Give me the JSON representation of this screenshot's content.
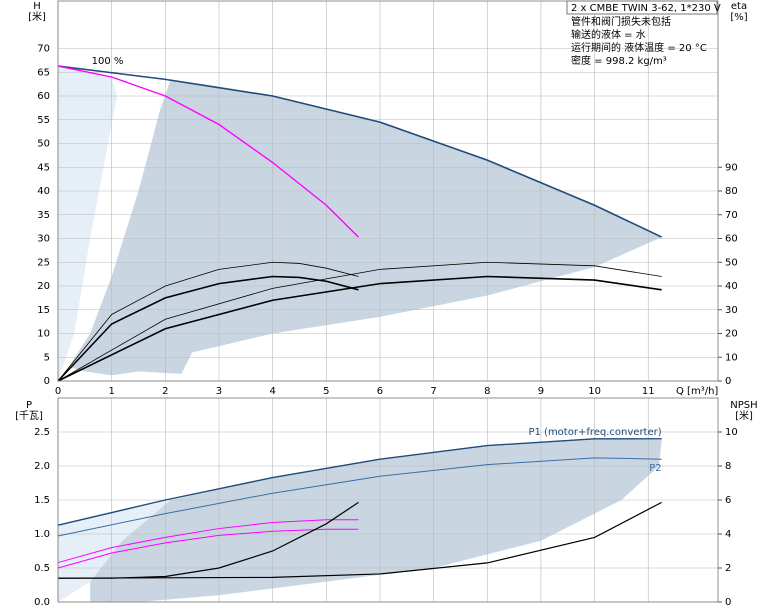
{
  "chart_data": [
    {
      "type": "line",
      "ylabel": "H",
      "yunit": "[米]",
      "y2label": "eta",
      "y2unit": "[%]",
      "xlabel": "Q [m³/h]",
      "notes": [
        "管件和阀门损失未包括",
        "输送的液体 = 水",
        "运行期间的 液体温度 = 20 °C",
        "密度 = 998.2 kg/m³"
      ],
      "product": "2 x CMBE TWIN 3-62, 1*230 V",
      "xlim": [
        0,
        12.3
      ],
      "xticks": [
        0,
        1,
        2,
        3,
        4,
        5,
        6,
        7,
        8,
        9,
        10,
        11
      ],
      "ylim": [
        0,
        80
      ],
      "yticks": [
        0,
        5,
        10,
        15,
        20,
        25,
        30,
        35,
        40,
        45,
        50,
        55,
        60,
        65,
        70
      ],
      "y2lim": [
        0,
        160
      ],
      "y2ticks": [
        0,
        10,
        20,
        30,
        40,
        50,
        60,
        70,
        80,
        90
      ],
      "grid": true,
      "areas": [
        {
          "color": "#e6eef7",
          "x": [
            0,
            1,
            1.1,
            0.6,
            0.3,
            0
          ],
          "values": [
            66.3,
            64,
            60,
            30,
            10,
            0
          ]
        },
        {
          "color": "#c9d6e2",
          "x": [
            2.1,
            3,
            4,
            6,
            8,
            10,
            11.25,
            10,
            8,
            6,
            4,
            2.5,
            2.3,
            1.5,
            1,
            0.5,
            0.2,
            0.6,
            1,
            1.5,
            1.9
          ],
          "values": [
            63.5,
            62,
            60,
            54.5,
            46.5,
            37,
            30.3,
            24,
            18,
            13.5,
            10,
            6,
            1.5,
            2,
            1.2,
            2,
            3,
            10,
            22,
            40,
            57
          ]
        }
      ],
      "series": [
        {
          "color": "#1f4a7a",
          "width": 1.6,
          "x": [
            0,
            2,
            4,
            6,
            8,
            10,
            11.25
          ],
          "values": [
            66.3,
            63.5,
            60,
            54.5,
            46.5,
            37,
            30.3
          ]
        },
        {
          "name": "100 %",
          "color": "#ff00ff",
          "width": 1.4,
          "x": [
            0,
            1,
            2,
            3,
            4,
            5,
            5.6
          ],
          "values": [
            66.3,
            64,
            60,
            54,
            46,
            37,
            30.3
          ]
        },
        {
          "axis": "y2",
          "color": "#000000",
          "width": 0.8,
          "x": [
            0,
            1,
            2,
            3,
            4,
            4.5,
            5,
            5.6
          ],
          "values": [
            0,
            28,
            40,
            47,
            50,
            49.5,
            47.5,
            44
          ]
        },
        {
          "axis": "y2",
          "color": "#000000",
          "width": 1.6,
          "x": [
            0,
            1,
            2,
            3,
            4,
            4.5,
            5,
            5.6
          ],
          "values": [
            0,
            24,
            35,
            41,
            44,
            43.6,
            42,
            38.4
          ]
        },
        {
          "axis": "y2",
          "color": "#000000",
          "width": 0.8,
          "x": [
            0,
            2,
            4,
            6,
            8,
            10,
            11.25
          ],
          "values": [
            0,
            26,
            39,
            47,
            50,
            48.5,
            44
          ]
        },
        {
          "axis": "y2",
          "color": "#000000",
          "width": 1.6,
          "x": [
            0,
            2,
            4,
            6,
            8,
            10,
            11.25
          ],
          "values": [
            0,
            22,
            34,
            41,
            44,
            42.5,
            38.4
          ]
        }
      ]
    },
    {
      "type": "line",
      "ylabel": "P",
      "yunit": "[千瓦]",
      "y2label": "NPSH",
      "y2unit": "[米]",
      "xlim": [
        0,
        12.3
      ],
      "ylim": [
        0,
        3
      ],
      "yticks": [
        {
          "value": 0,
          "label": "0.0"
        },
        0.5,
        {
          "value": 1,
          "label": "1.0"
        },
        1.5,
        {
          "value": 2,
          "label": "2.0"
        },
        2.5
      ],
      "y2lim": [
        0,
        12
      ],
      "y2ticks": [
        0,
        2,
        4,
        6,
        8,
        10
      ],
      "grid": true,
      "areas": [
        {
          "color": "#e6eef7",
          "x": [
            0,
            2.1,
            1.8,
            1.2,
            0.6,
            0
          ],
          "values": [
            1.13,
            1.5,
            1.3,
            0.9,
            0.3,
            0
          ]
        },
        {
          "color": "#c9d6e2",
          "x": [
            2.1,
            4,
            6,
            8,
            10,
            11.25,
            11.2,
            10.5,
            9,
            7,
            5,
            3,
            1.5,
            0.6,
            0.6,
            1.2,
            1.8
          ],
          "values": [
            1.5,
            1.83,
            2.1,
            2.3,
            2.4,
            2.38,
            2.0,
            1.5,
            0.9,
            0.5,
            0.3,
            0.1,
            0,
            0,
            0.3,
            0.9,
            1.3
          ]
        }
      ],
      "series": [
        {
          "name": "P1 (motor+freq.converter)",
          "color": "#1f4a7a",
          "width": 1.4,
          "x": [
            0,
            2,
            4,
            6,
            8,
            10,
            11.25
          ],
          "values": [
            1.13,
            1.5,
            1.83,
            2.1,
            2.3,
            2.4,
            2.4
          ]
        },
        {
          "name": "P2",
          "color": "#3a6ea5",
          "width": 1,
          "x": [
            0,
            2,
            4,
            6,
            8,
            10,
            11.25
          ],
          "values": [
            0.97,
            1.3,
            1.6,
            1.85,
            2.02,
            2.12,
            2.1
          ]
        },
        {
          "color": "#ff00ff",
          "width": 1,
          "x": [
            0,
            1,
            2,
            3,
            4,
            5,
            5.6
          ],
          "values": [
            0.58,
            0.8,
            0.95,
            1.08,
            1.17,
            1.21,
            1.21
          ]
        },
        {
          "color": "#ff00ff",
          "width": 1,
          "x": [
            0,
            1,
            2,
            3,
            4,
            5,
            5.6
          ],
          "values": [
            0.5,
            0.72,
            0.87,
            0.98,
            1.04,
            1.07,
            1.07
          ]
        },
        {
          "axis": "y2",
          "color": "#000000",
          "width": 1.2,
          "x": [
            0,
            1,
            2,
            3,
            4,
            5,
            5.6
          ],
          "values": [
            1.4,
            1.4,
            1.5,
            2.0,
            3.0,
            4.6,
            5.86
          ]
        },
        {
          "axis": "y2",
          "color": "#000000",
          "width": 1.2,
          "x": [
            0,
            4,
            6,
            8,
            10,
            11.25
          ],
          "values": [
            1.4,
            1.45,
            1.65,
            2.3,
            3.8,
            5.86
          ]
        }
      ]
    }
  ]
}
